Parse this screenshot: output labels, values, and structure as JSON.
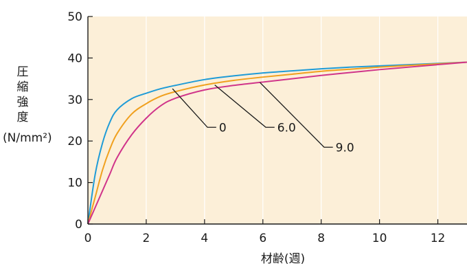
{
  "chart_data": {
    "type": "line",
    "xlabel": "材齢(週)",
    "ylabel_chars": [
      "圧",
      "縮",
      "強",
      "度"
    ],
    "ylabel_unit": "(N/mm²)",
    "xlim": [
      0,
      13
    ],
    "ylim": [
      0,
      50
    ],
    "x_ticks": [
      0,
      2,
      4,
      6,
      8,
      10,
      12
    ],
    "y_ticks": [
      0,
      10,
      20,
      30,
      40,
      50
    ],
    "grid": {
      "x": true,
      "y": false
    },
    "colors": {
      "plot_bg": "#FCEFD8",
      "grid": "#FFFFFF",
      "axis": "#1a1a1a",
      "leader": "#1a1a1a"
    },
    "series": [
      {
        "name": "0",
        "color": "#1E9BD7",
        "x": [
          0,
          0.25,
          0.5,
          0.75,
          1,
          1.5,
          2,
          2.5,
          3,
          4,
          5,
          6,
          7,
          8,
          9,
          10,
          11,
          12,
          13
        ],
        "y": [
          0,
          12,
          19.5,
          24.5,
          27.5,
          30.2,
          31.5,
          32.6,
          33.4,
          34.8,
          35.7,
          36.4,
          36.9,
          37.4,
          37.8,
          38.1,
          38.4,
          38.7,
          39
        ]
      },
      {
        "name": "6.0",
        "color": "#F0A01E",
        "x": [
          0,
          0.25,
          0.5,
          0.75,
          1,
          1.5,
          2,
          2.5,
          3,
          4,
          5,
          6,
          7,
          8,
          9,
          10,
          11,
          12,
          13
        ],
        "y": [
          0,
          6.5,
          13,
          18,
          21.8,
          26.5,
          29,
          30.8,
          31.9,
          33.5,
          34.6,
          35.4,
          36.1,
          36.8,
          37.3,
          37.8,
          38.2,
          38.6,
          39
        ]
      },
      {
        "name": "9.0",
        "color": "#D0348A",
        "x": [
          0,
          0.25,
          0.5,
          0.75,
          1,
          1.5,
          2,
          2.5,
          3,
          4,
          5,
          6,
          7,
          8,
          9,
          10,
          11,
          12,
          13
        ],
        "y": [
          0,
          4,
          8,
          12,
          16,
          21.5,
          25.5,
          28.5,
          30.3,
          32.3,
          33.4,
          34.2,
          35,
          35.8,
          36.5,
          37.2,
          37.8,
          38.4,
          39
        ]
      }
    ],
    "annotations": [
      {
        "series": "0",
        "text": "0",
        "anchor": [
          2.9,
          32.6
        ],
        "elbow": [
          4.1,
          23.3
        ],
        "end": [
          4.4,
          23.3
        ]
      },
      {
        "series": "6.0",
        "text": "6.0",
        "anchor": [
          4.35,
          33.5
        ],
        "elbow": [
          6.1,
          23.3
        ],
        "end": [
          6.4,
          23.3
        ]
      },
      {
        "series": "9.0",
        "text": "9.0",
        "anchor": [
          5.9,
          34.1
        ],
        "elbow": [
          8.1,
          18.5
        ],
        "end": [
          8.4,
          18.5
        ]
      }
    ]
  }
}
